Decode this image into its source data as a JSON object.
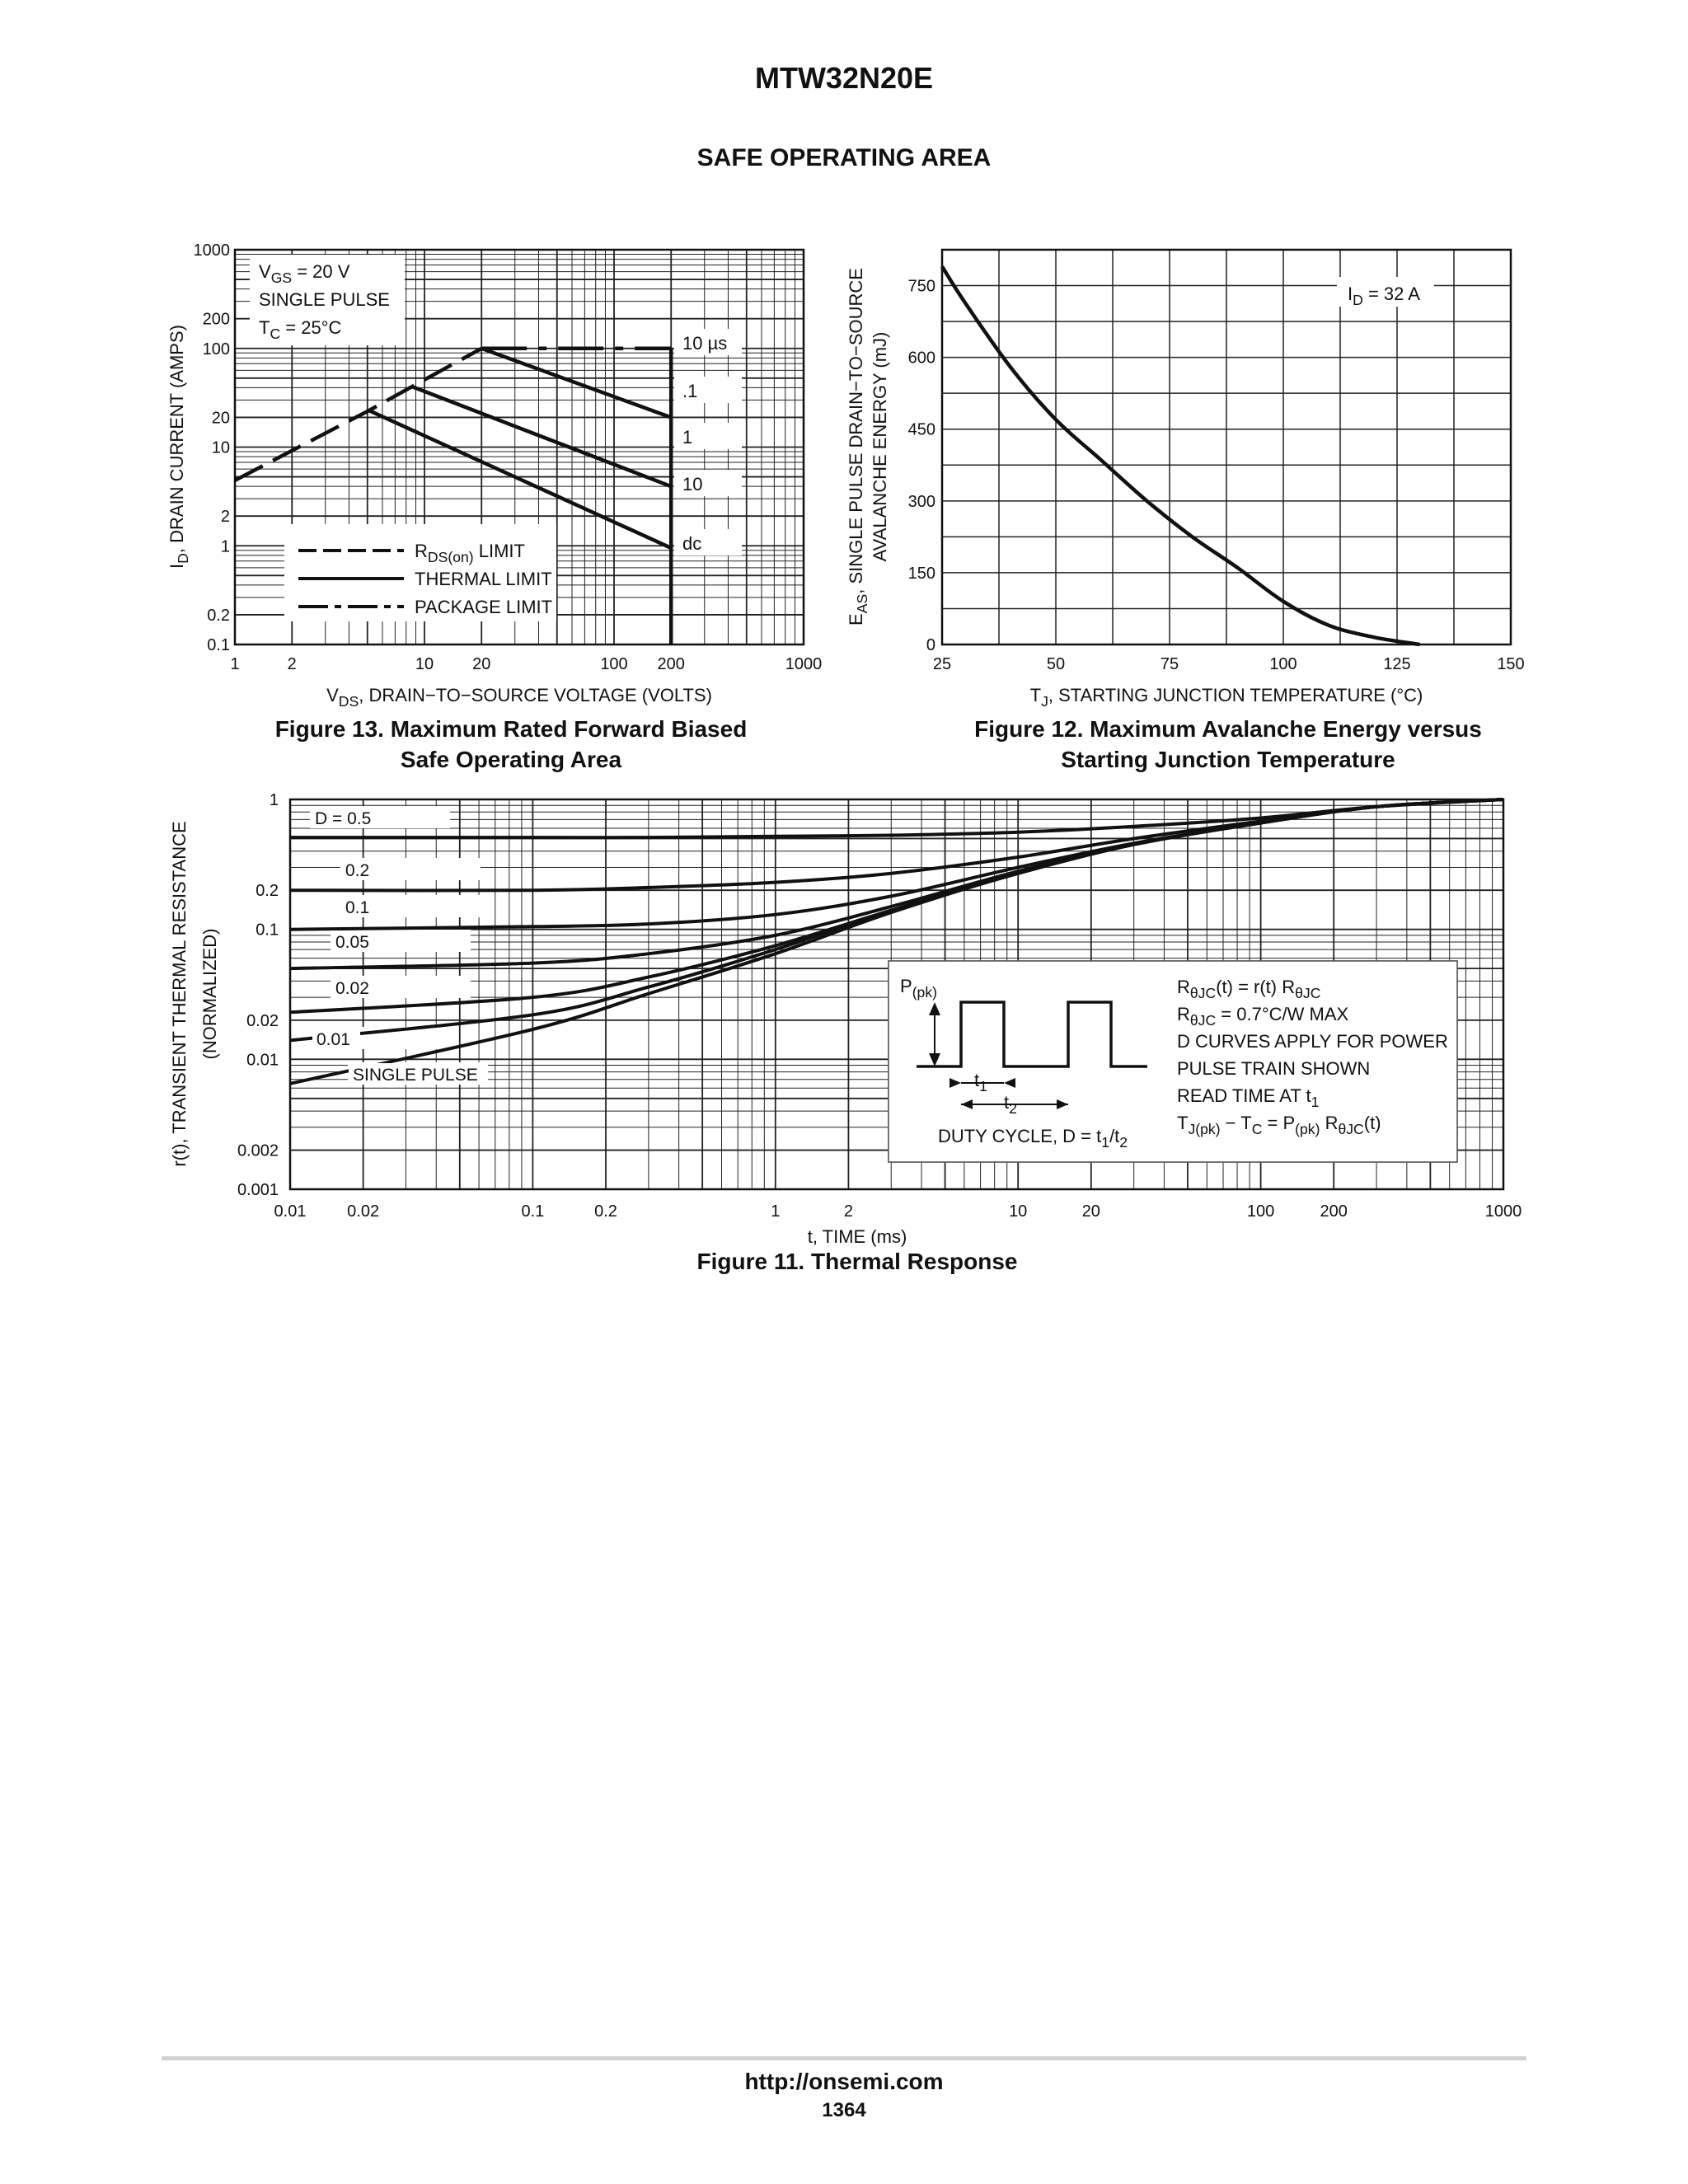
{
  "header": {
    "part_number": "MTW32N20E",
    "section_title": "SAFE OPERATING AREA"
  },
  "footer": {
    "url": "http://onsemi.com",
    "page_number": "1364"
  },
  "chart_data": [
    {
      "id": "fig13",
      "type": "line",
      "caption": [
        "Figure 13. Maximum Rated Forward Biased",
        "Safe Operating Area"
      ],
      "xlabel": "V",
      "xlabel_sub": "DS",
      "xlabel_rest": ", DRAIN−TO−SOURCE VOLTAGE (VOLTS)",
      "ylabel": "I",
      "ylabel_sub": "D",
      "ylabel_rest": ", DRAIN CURRENT (AMPS)",
      "x_scale": "log",
      "y_scale": "log",
      "xlim": [
        1,
        1000
      ],
      "ylim": [
        0.1,
        1000
      ],
      "x_ticks": [
        1,
        2,
        10,
        20,
        100,
        200,
        1000
      ],
      "x_tick_labels": [
        "1",
        "2",
        "10",
        "20",
        "100",
        "200",
        "1000"
      ],
      "y_ticks": [
        0.1,
        0.2,
        1,
        2,
        10,
        20,
        100,
        200,
        1000
      ],
      "y_tick_labels": [
        "0.1",
        "0.2",
        "1",
        "2",
        "10",
        "20",
        "100",
        "200",
        "1000"
      ],
      "conditions": [
        {
          "main": "V",
          "sub": "GS",
          "rest": " = 20 V"
        },
        {
          "main": "SINGLE PULSE",
          "sub": "",
          "rest": ""
        },
        {
          "main": "T",
          "sub": "C",
          "rest": " = 25°C"
        }
      ],
      "legend": [
        {
          "style": "dashed",
          "main": "R",
          "sub": "DS(on)",
          "rest": " LIMIT"
        },
        {
          "style": "solid",
          "main": "THERMAL LIMIT",
          "sub": "",
          "rest": ""
        },
        {
          "style": "dashdot",
          "main": "PACKAGE LIMIT",
          "sub": "",
          "rest": ""
        }
      ],
      "curve_labels": [
        "10 µs",
        ".1",
        "1",
        "10",
        "dc"
      ],
      "series": [
        {
          "style": "dashed",
          "points": [
            [
              1,
              4.6
            ],
            [
              5.1,
              23.5
            ],
            [
              8.6,
              41
            ],
            [
              20,
              100
            ]
          ]
        },
        {
          "style": "dashdot",
          "points": [
            [
              20,
              100
            ],
            [
              200,
              100
            ]
          ]
        },
        {
          "style": "solid",
          "points": [
            [
              20,
              100
            ],
            [
              200,
              20
            ]
          ]
        },
        {
          "style": "solid",
          "points": [
            [
              8.6,
              41
            ],
            [
              200,
              4
            ]
          ]
        },
        {
          "style": "solid",
          "points": [
            [
              5.1,
              23.5
            ],
            [
              200,
              0.95
            ]
          ]
        },
        {
          "style": "solid",
          "points": [
            [
              200,
              0.1
            ],
            [
              200,
              100
            ]
          ]
        }
      ]
    },
    {
      "id": "fig12",
      "type": "line",
      "caption": [
        "Figure 12.  Maximum Avalanche Energy versus",
        "Starting Junction Temperature"
      ],
      "xlabel": "T",
      "xlabel_sub": "J",
      "xlabel_rest": ", STARTING JUNCTION TEMPERATURE (°C)",
      "ylabel_line1": "E",
      "ylabel_line1_sub": "AS",
      "ylabel_line1_rest": ", SINGLE PULSE DRAIN−TO−SOURCE",
      "ylabel_line2": "AVALANCHE ENERGY (mJ)",
      "xlim": [
        25,
        150
      ],
      "ylim": [
        0,
        825
      ],
      "x_ticks": [
        25,
        50,
        75,
        100,
        125,
        150
      ],
      "x_tick_labels": [
        "25",
        "50",
        "75",
        "100",
        "125",
        "150"
      ],
      "y_ticks": [
        0,
        150,
        300,
        450,
        600,
        750
      ],
      "y_tick_labels": [
        "0",
        "150",
        "300",
        "450",
        "600",
        "750"
      ],
      "annotation": {
        "main": "I",
        "sub": "D",
        "rest": " = 32 A"
      },
      "x": [
        25,
        30,
        40,
        50,
        60,
        70,
        80,
        90,
        100,
        110,
        120,
        130
      ],
      "y": [
        790,
        715,
        580,
        470,
        385,
        300,
        225,
        160,
        90,
        40,
        15,
        0
      ]
    },
    {
      "id": "fig11",
      "type": "line",
      "caption": [
        "Figure 11.  Thermal Response"
      ],
      "xlabel": "t, TIME (ms)",
      "ylabel_line1": "r(t), TRANSIENT THERMAL RESISTANCE",
      "ylabel_line2": "(NORMALIZED)",
      "x_scale": "log",
      "y_scale": "log",
      "xlim": [
        0.01,
        1000
      ],
      "ylim": [
        0.001,
        1
      ],
      "x_ticks": [
        0.01,
        0.02,
        0.1,
        0.2,
        1,
        2,
        10,
        20,
        100,
        200,
        1000
      ],
      "x_tick_labels": [
        "0.01",
        "0.02",
        "0.1",
        "0.2",
        "1",
        "2",
        "10",
        "20",
        "100",
        "200",
        "1000"
      ],
      "y_ticks": [
        0.001,
        0.002,
        0.01,
        0.02,
        0.1,
        0.2,
        1
      ],
      "y_tick_labels": [
        "0.001",
        "0.002",
        "0.01",
        "0.02",
        "0.1",
        "0.2",
        "1"
      ],
      "x": [
        0.01,
        0.1,
        0.3,
        1,
        3,
        10,
        30,
        100,
        300,
        1000
      ],
      "series": [
        {
          "name": "D = 0.5",
          "values": [
            0.51,
            0.51,
            0.51,
            0.52,
            0.53,
            0.56,
            0.62,
            0.72,
            0.88,
            1.0
          ]
        },
        {
          "name": "0.2",
          "values": [
            0.2,
            0.2,
            0.21,
            0.23,
            0.27,
            0.36,
            0.5,
            0.68,
            0.88,
            1.0
          ]
        },
        {
          "name": "0.1",
          "values": [
            0.1,
            0.105,
            0.11,
            0.13,
            0.18,
            0.3,
            0.46,
            0.66,
            0.88,
            1.0
          ]
        },
        {
          "name": "0.05",
          "values": [
            0.05,
            0.055,
            0.065,
            0.09,
            0.15,
            0.28,
            0.45,
            0.66,
            0.88,
            1.0
          ]
        },
        {
          "name": "0.02",
          "values": [
            0.023,
            0.03,
            0.043,
            0.075,
            0.14,
            0.27,
            0.45,
            0.66,
            0.88,
            1.0
          ]
        },
        {
          "name": "0.01",
          "values": [
            0.014,
            0.022,
            0.036,
            0.07,
            0.14,
            0.27,
            0.45,
            0.66,
            0.88,
            1.0
          ]
        },
        {
          "name": "SINGLE PULSE",
          "values": [
            0.0065,
            0.017,
            0.032,
            0.065,
            0.135,
            0.27,
            0.45,
            0.66,
            0.88,
            1.0
          ]
        }
      ],
      "inset": {
        "pulse_label": "P",
        "pulse_label_sub": "(pk)",
        "t1": "t",
        "t1_sub": "1",
        "t2": "t",
        "t2_sub": "2",
        "duty": "DUTY CYCLE, D = t",
        "duty_sub1": "1",
        "duty_mid": "/t",
        "duty_sub2": "2",
        "notes": [
          {
            "parts": [
              [
                "R",
                ""
              ],
              [
                "θJC",
                "sub"
              ],
              [
                "(t) = r(t) R",
                ""
              ],
              [
                "θJC",
                "sub"
              ]
            ]
          },
          {
            "parts": [
              [
                "R",
                ""
              ],
              [
                "θJC",
                "sub"
              ],
              [
                " = 0.7°C/W MAX",
                ""
              ]
            ]
          },
          {
            "parts": [
              [
                "D CURVES APPLY FOR POWER",
                ""
              ]
            ]
          },
          {
            "parts": [
              [
                "PULSE TRAIN SHOWN",
                ""
              ]
            ]
          },
          {
            "parts": [
              [
                "READ TIME AT t",
                ""
              ],
              [
                "1",
                "sub"
              ]
            ]
          },
          {
            "parts": [
              [
                "T",
                ""
              ],
              [
                "J(pk)",
                "sub"
              ],
              [
                " − T",
                ""
              ],
              [
                "C",
                "sub"
              ],
              [
                " = P",
                ""
              ],
              [
                "(pk)",
                "sub"
              ],
              [
                " R",
                ""
              ],
              [
                "θJC",
                "sub"
              ],
              [
                "(t)",
                ""
              ]
            ]
          }
        ]
      }
    }
  ]
}
